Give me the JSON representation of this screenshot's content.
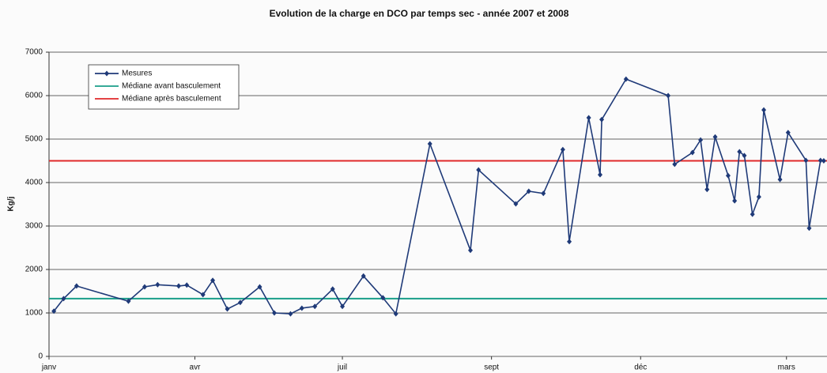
{
  "chart_data": {
    "type": "line",
    "title": "Evolution de la charge en DCO par temps sec - année 2007 et 2008",
    "y_label": "Kg/j",
    "xlim": [
      0,
      480
    ],
    "xticks": [
      {
        "value": 0,
        "label": "janv"
      },
      {
        "value": 90,
        "label": "avr"
      },
      {
        "value": 181,
        "label": "juil"
      },
      {
        "value": 273,
        "label": "sept"
      },
      {
        "value": 365,
        "label": "déc"
      },
      {
        "value": 455,
        "label": "mars"
      }
    ],
    "ylim": [
      0,
      7000
    ],
    "yticks": [
      0,
      1000,
      2000,
      3000,
      4000,
      5000,
      6000,
      7000
    ],
    "grid": true,
    "legend": "top-left",
    "series": [
      {
        "name": "Mesures",
        "color": "#1f3a78",
        "x": [
          3,
          9,
          17,
          49,
          59,
          67,
          80,
          85,
          95,
          101,
          110,
          118,
          130,
          139,
          149,
          156,
          164,
          175,
          181,
          194,
          206,
          214,
          235,
          260,
          265,
          288,
          296,
          305,
          317,
          321,
          333,
          340,
          341,
          356,
          382,
          386,
          397,
          402,
          406,
          411,
          419,
          423,
          426,
          429,
          434,
          438,
          441,
          451,
          456,
          467,
          469,
          476,
          478
        ],
        "values": [
          1040,
          1330,
          1620,
          1270,
          1600,
          1650,
          1620,
          1640,
          1420,
          1750,
          1090,
          1240,
          1600,
          1000,
          980,
          1110,
          1150,
          1550,
          1150,
          1850,
          1350,
          980,
          4890,
          2440,
          4290,
          3510,
          3800,
          3750,
          4760,
          2640,
          5490,
          4180,
          5450,
          6380,
          6000,
          4420,
          4690,
          4980,
          3840,
          5050,
          4160,
          3580,
          4710,
          4620,
          3270,
          3670,
          5670,
          4070,
          5150,
          4510,
          2950,
          4510,
          4500
        ]
      }
    ],
    "reference_lines": [
      {
        "name": "Médiane avant basculement",
        "color": "#1a9e8a",
        "value": 1330
      },
      {
        "name": "Médiane après basculement",
        "color": "#e0282a",
        "value": 4500
      }
    ]
  }
}
